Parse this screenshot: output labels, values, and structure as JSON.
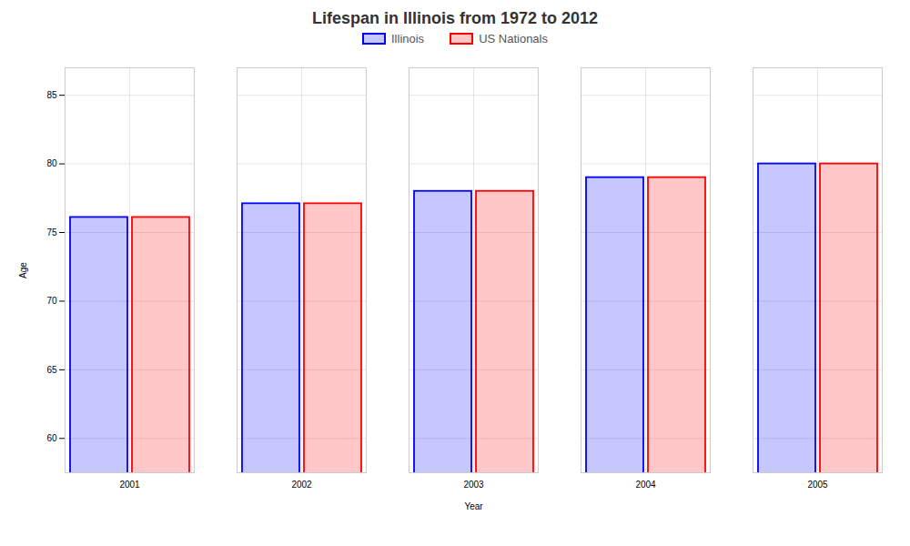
{
  "chart_data": {
    "type": "bar",
    "title": "Lifespan in Illinois from 1972 to 2012",
    "xlabel": "Year",
    "ylabel": "Age",
    "categories": [
      "2001",
      "2002",
      "2003",
      "2004",
      "2005"
    ],
    "series": [
      {
        "name": "Illinois",
        "color": "#0000ff",
        "values": [
          76.1,
          77.1,
          78.0,
          79.0,
          80.0
        ]
      },
      {
        "name": "US Nationals",
        "color": "#ff0000",
        "values": [
          76.1,
          77.1,
          78.0,
          79.0,
          80.0
        ]
      }
    ],
    "ylim": [
      57.5,
      87
    ],
    "yticks": [
      60,
      65,
      70,
      75,
      80,
      85
    ],
    "grid": true,
    "legend": "top"
  }
}
